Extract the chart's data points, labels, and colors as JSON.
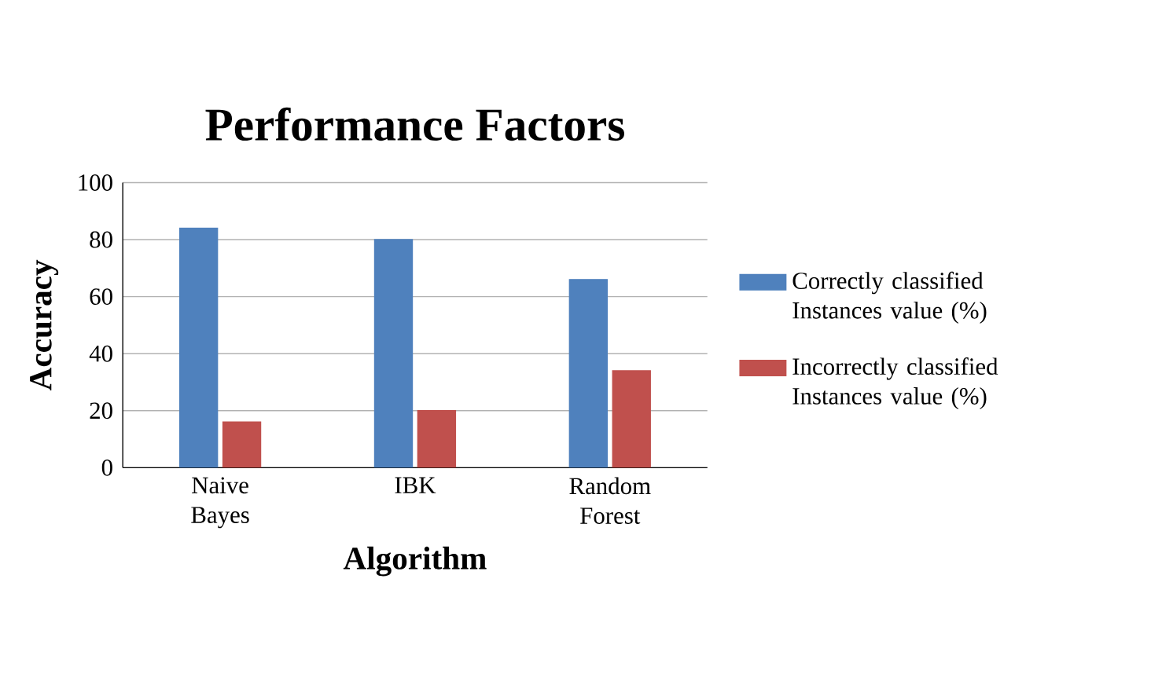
{
  "chart_data": {
    "type": "bar",
    "title": "Performance Factors",
    "xlabel": "Algorithm",
    "ylabel": "Accuracy",
    "categories": [
      "Naive Bayes",
      "IBK",
      "Random Forest"
    ],
    "series": [
      {
        "name": "Correctly classified Instances value (%)",
        "color": "#4f81bd",
        "values": [
          84,
          80,
          66
        ]
      },
      {
        "name": "Incorrectly classified Instances value (%)",
        "color": "#c0504d",
        "values": [
          16,
          20,
          34
        ]
      }
    ],
    "ylim": [
      0,
      100
    ],
    "yticks": [
      0,
      20,
      40,
      60,
      80,
      100
    ],
    "grid": "y",
    "legend": "right"
  }
}
